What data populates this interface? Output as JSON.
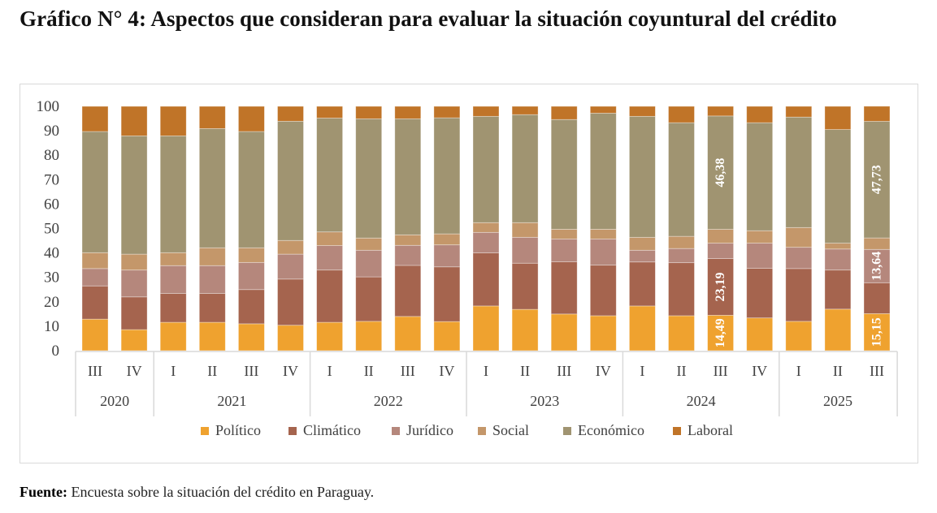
{
  "title": "Gráfico N° 4: Aspectos que consideran para evaluar la situación coyuntural del crédito",
  "source": {
    "label": "Fuente:",
    "text": " Encuesta sobre la situación del crédito en Paraguay."
  },
  "chart_data": {
    "type": "bar",
    "stacked": true,
    "title": "Gráfico N° 4: Aspectos que consideran para evaluar la situación coyuntural del crédito",
    "xlabel": "",
    "ylabel": "",
    "ylim": [
      0,
      100
    ],
    "yticks": [
      0,
      10,
      20,
      30,
      40,
      50,
      60,
      70,
      80,
      90,
      100
    ],
    "grid": false,
    "legend_position": "bottom",
    "groups": [
      {
        "year": "2020",
        "quarters": [
          "III",
          "IV"
        ]
      },
      {
        "year": "2021",
        "quarters": [
          "I",
          "II",
          "III",
          "IV"
        ]
      },
      {
        "year": "2022",
        "quarters": [
          "I",
          "II",
          "III",
          "IV"
        ]
      },
      {
        "year": "2023",
        "quarters": [
          "I",
          "II",
          "III",
          "IV"
        ]
      },
      {
        "year": "2024",
        "quarters": [
          "I",
          "II",
          "III",
          "IV"
        ]
      },
      {
        "year": "2025",
        "quarters": [
          "I",
          "II",
          "III"
        ]
      }
    ],
    "categories": [
      "2020 III",
      "2020 IV",
      "2021 I",
      "2021 II",
      "2021 III",
      "2021 IV",
      "2022 I",
      "2022 II",
      "2022 III",
      "2022 IV",
      "2023 I",
      "2023 II",
      "2023 III",
      "2023 IV",
      "2024 I",
      "2024 II",
      "2024 III",
      "2024 IV",
      "2025 I",
      "2025 II",
      "2025 III"
    ],
    "series": [
      {
        "name": "Político",
        "color": "#EFA22F",
        "values": [
          12.9,
          8.6,
          11.6,
          11.6,
          11.0,
          10.4,
          11.6,
          12.0,
          14.0,
          11.9,
          18.3,
          16.9,
          15.0,
          14.3,
          18.3,
          14.3,
          14.49,
          13.4,
          12.0,
          17.0,
          15.15
        ]
      },
      {
        "name": "Climático",
        "color": "#A5644E",
        "values": [
          13.6,
          13.4,
          11.8,
          11.8,
          14.0,
          18.9,
          21.4,
          18.2,
          20.9,
          22.4,
          21.7,
          18.9,
          21.4,
          20.7,
          18.0,
          21.7,
          23.19,
          20.3,
          21.6,
          16.0,
          12.65
        ]
      },
      {
        "name": "Jurídico",
        "color": "#B5877C",
        "values": [
          7.1,
          11.0,
          11.4,
          11.4,
          11.1,
          10.2,
          10.0,
          10.9,
          8.2,
          9.0,
          8.4,
          10.6,
          9.3,
          10.7,
          4.8,
          5.8,
          6.3,
          10.3,
          8.7,
          8.6,
          13.64
        ]
      },
      {
        "name": "Social",
        "color": "#C4976A",
        "values": [
          6.5,
          6.5,
          5.3,
          7.3,
          6.0,
          5.6,
          5.6,
          5.0,
          4.3,
          4.5,
          4.0,
          6.0,
          4.0,
          4.0,
          5.3,
          5.0,
          5.7,
          5.1,
          8.1,
          2.4,
          4.7
        ]
      },
      {
        "name": "Económico",
        "color": "#A09471",
        "values": [
          49.6,
          48.4,
          47.8,
          48.8,
          47.6,
          48.8,
          46.6,
          48.8,
          47.5,
          47.5,
          43.5,
          44.2,
          44.9,
          47.5,
          49.5,
          46.5,
          46.38,
          44.2,
          45.2,
          46.5,
          47.73
        ]
      },
      {
        "name": "Laboral",
        "color": "#C07428",
        "values": [
          10.3,
          12.1,
          12.1,
          9.1,
          10.3,
          6.1,
          4.8,
          5.1,
          5.1,
          4.7,
          4.1,
          3.4,
          5.4,
          2.8,
          4.1,
          6.7,
          3.94,
          6.7,
          4.4,
          9.5,
          6.17
        ]
      }
    ],
    "data_labels": [
      {
        "category": "2024 III",
        "series": "Político",
        "text": "14,49"
      },
      {
        "category": "2024 III",
        "series": "Climático",
        "text": "23,19"
      },
      {
        "category": "2024 III",
        "series": "Económico",
        "text": "46,38"
      },
      {
        "category": "2025 III",
        "series": "Político",
        "text": "15,15"
      },
      {
        "category": "2025 III",
        "series": "Jurídico",
        "text": "13,64"
      },
      {
        "category": "2025 III",
        "series": "Económico",
        "text": "47,73"
      }
    ]
  }
}
